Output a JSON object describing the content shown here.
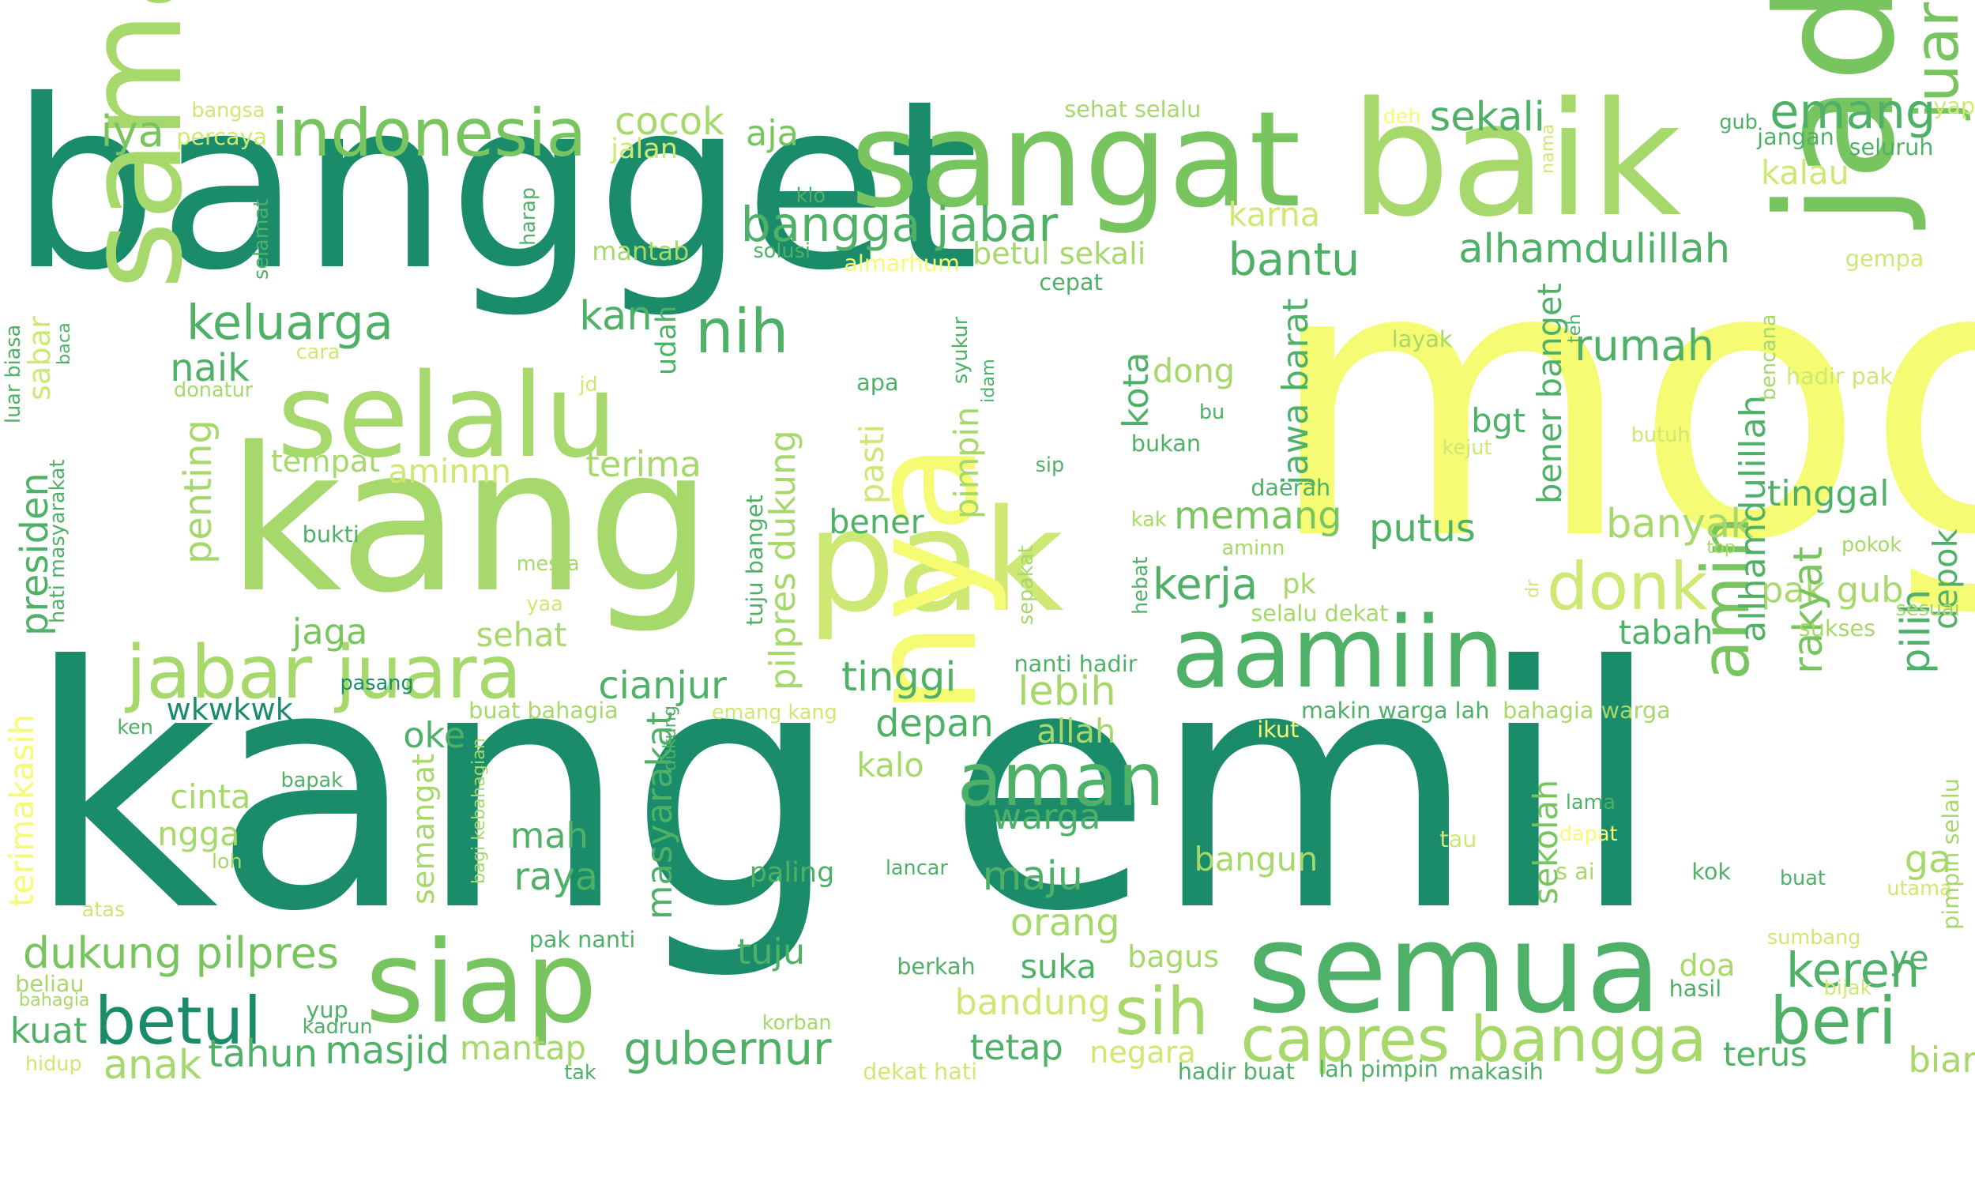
{
  "palette": {
    "dark_green": "#1a8c69",
    "green": "#4fb067",
    "mid_green": "#78c55f",
    "light_green": "#a6d86b",
    "yellow_green": "#cde873",
    "yellow": "#f5fb72"
  },
  "words": [
    {
      "text": "moga",
      "color": "yellow"
    },
    {
      "text": "kang emil",
      "color": "dark_green"
    },
    {
      "text": "bangget",
      "color": "dark_green"
    },
    {
      "text": "baik",
      "color": "light_green"
    },
    {
      "text": "sangat",
      "color": "mid_green"
    },
    {
      "text": "kang",
      "color": "light_green"
    },
    {
      "text": "sama",
      "color": "light_green"
    },
    {
      "text": "selalu",
      "color": "light_green"
    },
    {
      "text": "pak",
      "color": "yellow_green"
    },
    {
      "text": "nya",
      "color": "yellow"
    },
    {
      "text": "jadi",
      "color": "mid_green"
    },
    {
      "text": "semua",
      "color": "green"
    },
    {
      "text": "aamiin",
      "color": "green"
    },
    {
      "text": "siap",
      "color": "mid_green"
    },
    {
      "text": "jabar juara",
      "color": "light_green"
    },
    {
      "text": "indonesia",
      "color": "mid_green"
    },
    {
      "text": "capres bangga",
      "color": "light_green"
    },
    {
      "text": "juara capres",
      "color": "mid_green"
    },
    {
      "text": "betul",
      "color": "dark_green"
    },
    {
      "text": "beri",
      "color": "green"
    },
    {
      "text": "sih",
      "color": "light_green"
    },
    {
      "text": "aman",
      "color": "green"
    },
    {
      "text": "donk",
      "color": "yellow_green"
    },
    {
      "text": "amin",
      "color": "mid_green"
    },
    {
      "text": "nih",
      "color": "green"
    },
    {
      "text": "bangga jabar",
      "color": "green"
    },
    {
      "text": "keluarga",
      "color": "green"
    },
    {
      "text": "emang",
      "color": "green"
    },
    {
      "text": "sekali",
      "color": "green"
    },
    {
      "text": "alhamdulillah",
      "color": "green"
    },
    {
      "text": "gubernur",
      "color": "green"
    },
    {
      "text": "dukung pilpres",
      "color": "mid_green"
    },
    {
      "text": "bantu",
      "color": "green"
    },
    {
      "text": "rumah",
      "color": "green"
    },
    {
      "text": "iya",
      "color": "mid_green"
    },
    {
      "text": "cocok",
      "color": "light_green"
    },
    {
      "text": "aja",
      "color": "mid_green"
    },
    {
      "text": "kan",
      "color": "green"
    },
    {
      "text": "naik",
      "color": "green"
    },
    {
      "text": "kerja",
      "color": "green"
    },
    {
      "text": "memang",
      "color": "mid_green"
    },
    {
      "text": "lebih",
      "color": "light_green"
    },
    {
      "text": "depan",
      "color": "green"
    },
    {
      "text": "maju",
      "color": "green"
    },
    {
      "text": "tinggi",
      "color": "green"
    },
    {
      "text": "cianjur",
      "color": "green"
    },
    {
      "text": "putus",
      "color": "green"
    },
    {
      "text": "banyak",
      "color": "light_green"
    },
    {
      "text": "pak gub",
      "color": "light_green"
    },
    {
      "text": "keren",
      "color": "green"
    },
    {
      "text": "tinggal",
      "color": "green"
    },
    {
      "text": "pilih",
      "color": "green"
    },
    {
      "text": "depok",
      "color": "green"
    },
    {
      "text": "rakyat",
      "color": "mid_green"
    },
    {
      "text": "allhamdulillah",
      "color": "green"
    },
    {
      "text": "tuju",
      "color": "green"
    },
    {
      "text": "anak",
      "color": "light_green"
    },
    {
      "text": "tahun",
      "color": "green"
    },
    {
      "text": "masjid",
      "color": "green"
    },
    {
      "text": "mantap",
      "color": "light_green"
    },
    {
      "text": "tetap",
      "color": "green"
    },
    {
      "text": "kuat",
      "color": "green"
    },
    {
      "text": "bandung",
      "color": "yellow_green"
    },
    {
      "text": "orang",
      "color": "light_green"
    },
    {
      "text": "suka",
      "color": "green"
    },
    {
      "text": "warga",
      "color": "green"
    },
    {
      "text": "bangun",
      "color": "light_green"
    },
    {
      "text": "raya",
      "color": "green"
    },
    {
      "text": "mah",
      "color": "green"
    },
    {
      "text": "ngga",
      "color": "light_green"
    },
    {
      "text": "cinta",
      "color": "light_green"
    },
    {
      "text": "oke",
      "color": "green"
    },
    {
      "text": "allah",
      "color": "light_green"
    },
    {
      "text": "terima",
      "color": "light_green"
    },
    {
      "text": "aminnn",
      "color": "yellow_green"
    },
    {
      "text": "tempat",
      "color": "light_green"
    },
    {
      "text": "jaga",
      "color": "mid_green"
    },
    {
      "text": "sehat",
      "color": "light_green"
    },
    {
      "text": "bener",
      "color": "green"
    },
    {
      "text": "bagus",
      "color": "light_green"
    },
    {
      "text": "terus",
      "color": "green"
    },
    {
      "text": "biar",
      "color": "light_green"
    },
    {
      "text": "negara",
      "color": "yellow_green"
    },
    {
      "text": "karna",
      "color": "yellow_green"
    },
    {
      "text": "kalau",
      "color": "yellow_green"
    },
    {
      "text": "tabah",
      "color": "green"
    },
    {
      "text": "dong",
      "color": "light_green"
    },
    {
      "text": "betul sekali",
      "color": "light_green"
    },
    {
      "text": "kalo",
      "color": "light_green"
    },
    {
      "text": "paling",
      "color": "green"
    },
    {
      "text": "wkwkwk",
      "color": "dark_green"
    },
    {
      "text": "doa",
      "color": "light_green"
    },
    {
      "text": "ye",
      "color": "green"
    },
    {
      "text": "jalan",
      "color": "yellow_green"
    },
    {
      "text": "mantab",
      "color": "light_green"
    },
    {
      "text": "almarhum",
      "color": "yellow"
    },
    {
      "text": "bgt",
      "color": "green"
    },
    {
      "text": "pk",
      "color": "light_green"
    },
    {
      "text": "ga",
      "color": "light_green"
    },
    {
      "text": "percaya",
      "color": "yellow_green"
    },
    {
      "text": "bangsa",
      "color": "yellow_green"
    },
    {
      "text": "sehat selalu",
      "color": "light_green"
    },
    {
      "text": "deh",
      "color": "yellow"
    },
    {
      "text": "gub",
      "color": "green"
    },
    {
      "text": "jangan",
      "color": "green"
    },
    {
      "text": "yap",
      "color": "yellow_green"
    },
    {
      "text": "seluruh",
      "color": "green"
    },
    {
      "text": "klo",
      "color": "green"
    },
    {
      "text": "solusi",
      "color": "green"
    },
    {
      "text": "cepat",
      "color": "green"
    },
    {
      "text": "gempa",
      "color": "yellow_green"
    },
    {
      "text": "layak",
      "color": "light_green"
    },
    {
      "text": "hadir pak",
      "color": "yellow_green"
    },
    {
      "text": "apa",
      "color": "green"
    },
    {
      "text": "bu",
      "color": "green"
    },
    {
      "text": "bukan",
      "color": "green"
    },
    {
      "text": "butuh",
      "color": "yellow_green"
    },
    {
      "text": "kejut",
      "color": "yellow_green"
    },
    {
      "text": "sip",
      "color": "green"
    },
    {
      "text": "daerah",
      "color": "green"
    },
    {
      "text": "cara",
      "color": "yellow_green"
    },
    {
      "text": "jd",
      "color": "yellow_green"
    },
    {
      "text": "donatur",
      "color": "light_green"
    },
    {
      "text": "bukti",
      "color": "green"
    },
    {
      "text": "mesra",
      "color": "light_green"
    },
    {
      "text": "yaa",
      "color": "yellow_green"
    },
    {
      "text": "kak",
      "color": "light_green"
    },
    {
      "text": "aminn",
      "color": "light_green"
    },
    {
      "text": "top",
      "color": "light_green"
    },
    {
      "text": "pokok",
      "color": "light_green"
    },
    {
      "text": "selalu dekat",
      "color": "light_green"
    },
    {
      "text": "sukses",
      "color": "light_green"
    },
    {
      "text": "sesuai",
      "color": "light_green"
    },
    {
      "text": "pasang",
      "color": "dark_green"
    },
    {
      "text": "buat bahagia",
      "color": "light_green"
    },
    {
      "text": "nanti hadir",
      "color": "green"
    },
    {
      "text": "emang kang",
      "color": "yellow_green"
    },
    {
      "text": "ikut",
      "color": "yellow"
    },
    {
      "text": "makin warga lah",
      "color": "green"
    },
    {
      "text": "bahagia warga",
      "color": "light_green"
    },
    {
      "text": "ken",
      "color": "green"
    },
    {
      "text": "bapak",
      "color": "green"
    },
    {
      "text": "lama",
      "color": "green"
    },
    {
      "text": "tau",
      "color": "yellow_green"
    },
    {
      "text": "dapat",
      "color": "yellow"
    },
    {
      "text": "s ai",
      "color": "light_green"
    },
    {
      "text": "kok",
      "color": "green"
    },
    {
      "text": "buat",
      "color": "green"
    },
    {
      "text": "utama",
      "color": "yellow_green"
    },
    {
      "text": "loh",
      "color": "light_green"
    },
    {
      "text": "atas",
      "color": "yellow_green"
    },
    {
      "text": "lancar",
      "color": "green"
    },
    {
      "text": "pak nanti",
      "color": "green"
    },
    {
      "text": "sumbang",
      "color": "yellow_green"
    },
    {
      "text": "beliau",
      "color": "light_green"
    },
    {
      "text": "bahagia",
      "color": "light_green"
    },
    {
      "text": "yup",
      "color": "green"
    },
    {
      "text": "kadrun",
      "color": "green"
    },
    {
      "text": "berkah",
      "color": "green"
    },
    {
      "text": "hasil",
      "color": "green"
    },
    {
      "text": "bijak",
      "color": "yellow_green"
    },
    {
      "text": "korban",
      "color": "light_green"
    },
    {
      "text": "hidup",
      "color": "yellow_green"
    },
    {
      "text": "tak",
      "color": "green"
    },
    {
      "text": "dekat hati",
      "color": "yellow_green"
    },
    {
      "text": "hadir buat",
      "color": "green"
    },
    {
      "text": "lah pimpin",
      "color": "green"
    },
    {
      "text": "makasih",
      "color": "green"
    },
    {
      "text": "presiden",
      "color": "green"
    },
    {
      "text": "penting",
      "color": "light_green"
    },
    {
      "text": "sabar",
      "color": "yellow_green"
    },
    {
      "text": "terimakasih",
      "color": "yellow"
    },
    {
      "text": "semangat",
      "color": "light_green"
    },
    {
      "text": "masyarakat",
      "color": "green"
    },
    {
      "text": "pilpres dukung",
      "color": "light_green"
    },
    {
      "text": "pasti",
      "color": "yellow_green"
    },
    {
      "text": "pimpin",
      "color": "light_green"
    },
    {
      "text": "kota",
      "color": "green"
    },
    {
      "text": "jawa barat",
      "color": "green"
    },
    {
      "text": "bener banget",
      "color": "green"
    },
    {
      "text": "sekolah",
      "color": "mid_green"
    },
    {
      "text": "udah",
      "color": "green"
    },
    {
      "text": "tuju banget",
      "color": "green"
    },
    {
      "text": "hebat",
      "color": "green"
    },
    {
      "text": "sepakat",
      "color": "light_green"
    },
    {
      "text": "syukur",
      "color": "green"
    },
    {
      "text": "idam",
      "color": "green"
    },
    {
      "text": "luar biasa",
      "color": "green"
    },
    {
      "text": "hati masyarakat",
      "color": "green"
    },
    {
      "text": "baca",
      "color": "green"
    },
    {
      "text": "selamat",
      "color": "green"
    },
    {
      "text": "harap",
      "color": "green"
    },
    {
      "text": "bagi kebahagian",
      "color": "light_green"
    },
    {
      "text": "dukung",
      "color": "green"
    },
    {
      "text": "nama",
      "color": "yellow_green"
    },
    {
      "text": "teh",
      "color": "green"
    },
    {
      "text": "bencana",
      "color": "light_green"
    },
    {
      "text": "pimpin selalu",
      "color": "light_green"
    },
    {
      "text": "dr",
      "color": "yellow_green"
    }
  ]
}
